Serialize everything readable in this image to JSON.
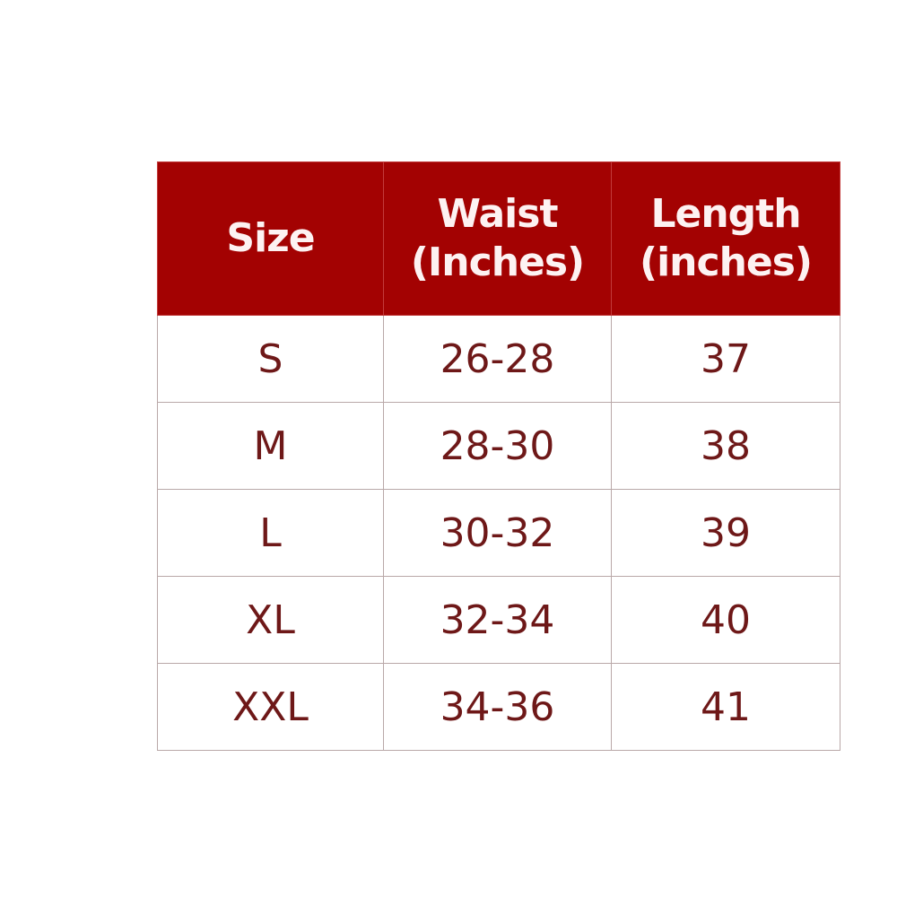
{
  "header": {
    "size": "Size",
    "waist": [
      "Waist",
      "(Inches)"
    ],
    "length": [
      "Length",
      "(inches)"
    ]
  },
  "rows": [
    {
      "size": "S",
      "waist": "26-28",
      "length": "37"
    },
    {
      "size": "M",
      "waist": "28-30",
      "length": "38"
    },
    {
      "size": "L",
      "waist": "30-32",
      "length": "39"
    },
    {
      "size": "XL",
      "waist": "32-34",
      "length": "40"
    },
    {
      "size": "XXL",
      "waist": "34-36",
      "length": "41"
    }
  ],
  "colors": {
    "header_bg": "#a30202",
    "header_text": "#fdf2f2",
    "body_text": "#6e1818"
  }
}
